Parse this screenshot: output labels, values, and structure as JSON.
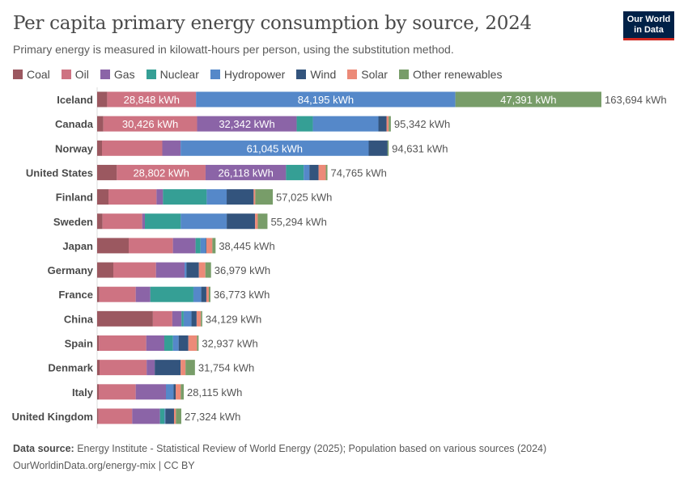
{
  "title": "Per capita primary energy consumption by source, 2024",
  "subtitle": "Primary energy is measured in kilowatt-hours per person, using the substitution method.",
  "logo": "Our World in Data",
  "footer": {
    "source_label": "Data source:",
    "source": "Energy Institute - Statistical Review of World Energy (2025); Population based on various sources (2024)",
    "url": "OurWorldinData.org/energy-mix | CC BY"
  },
  "chart_data": {
    "type": "bar",
    "orientation": "horizontal",
    "stacked": true,
    "unit": "kWh",
    "legend_position": "top",
    "title": "Per capita primary energy consumption by source, 2024",
    "categories": [
      "Iceland",
      "Canada",
      "Norway",
      "United States",
      "Finland",
      "Sweden",
      "Japan",
      "Germany",
      "France",
      "China",
      "Spain",
      "Denmark",
      "Italy",
      "United Kingdom"
    ],
    "totals": [
      163694,
      95342,
      94631,
      74765,
      57025,
      55294,
      38445,
      36979,
      36773,
      34129,
      32937,
      31754,
      28115,
      27324
    ],
    "labeled_values": {
      "Iceland": {
        "Oil": 28848,
        "Hydropower": 84195,
        "Other renewables": 47391
      },
      "Canada": {
        "Oil": 30426,
        "Gas": 32342
      },
      "Norway": {
        "Hydropower": 61045
      },
      "United States": {
        "Oil": 28802,
        "Gas": 26118
      }
    },
    "series": [
      {
        "name": "Coal",
        "color": "#9b5860",
        "values": [
          3260,
          2015,
          1577,
          6395,
          3679,
          1752,
          10249,
          5256,
          700,
          18100,
          613,
          788,
          526,
          438
        ]
      },
      {
        "name": "Oil",
        "color": "#ce7382",
        "values": [
          28848,
          30426,
          19570,
          28802,
          15593,
          12877,
          14356,
          13852,
          11826,
          6307,
          15329,
          15285,
          12001,
          10943
        ]
      },
      {
        "name": "Gas",
        "color": "#8b64a7",
        "values": [
          0,
          32342,
          5957,
          26118,
          2102,
          876,
          7358,
          9286,
          4730,
          2978,
          5869,
          2628,
          9807,
          9023
        ]
      },
      {
        "name": "Nuclear",
        "color": "#359f95",
        "values": [
          0,
          5256,
          0,
          5741,
          14191,
          11651,
          1577,
          0,
          13999,
          700,
          2803,
          0,
          0,
          1489
        ]
      },
      {
        "name": "Hydropower",
        "color": "#5588c9",
        "values": [
          84195,
          21273,
          61045,
          1840,
          6482,
          14910,
          1752,
          613,
          2540,
          2540,
          1840,
          0,
          2453,
          263
        ]
      },
      {
        "name": "Wind",
        "color": "#33547d",
        "values": [
          0,
          2630,
          6132,
          2978,
          8760,
          9198,
          175,
          4030,
          1664,
          1664,
          3154,
          8410,
          700,
          2803
        ]
      },
      {
        "name": "Solar",
        "color": "#ec8a78",
        "values": [
          0,
          700,
          0,
          2365,
          526,
          876,
          1927,
          2102,
          788,
          1402,
          2803,
          1577,
          1664,
          613
        ]
      },
      {
        "name": "Other renewables",
        "color": "#789d69",
        "values": [
          47391,
          700,
          350,
          526,
          5692,
          3154,
          1051,
          1840,
          526,
          438,
          526,
          3066,
          964,
          1752
        ]
      }
    ]
  }
}
